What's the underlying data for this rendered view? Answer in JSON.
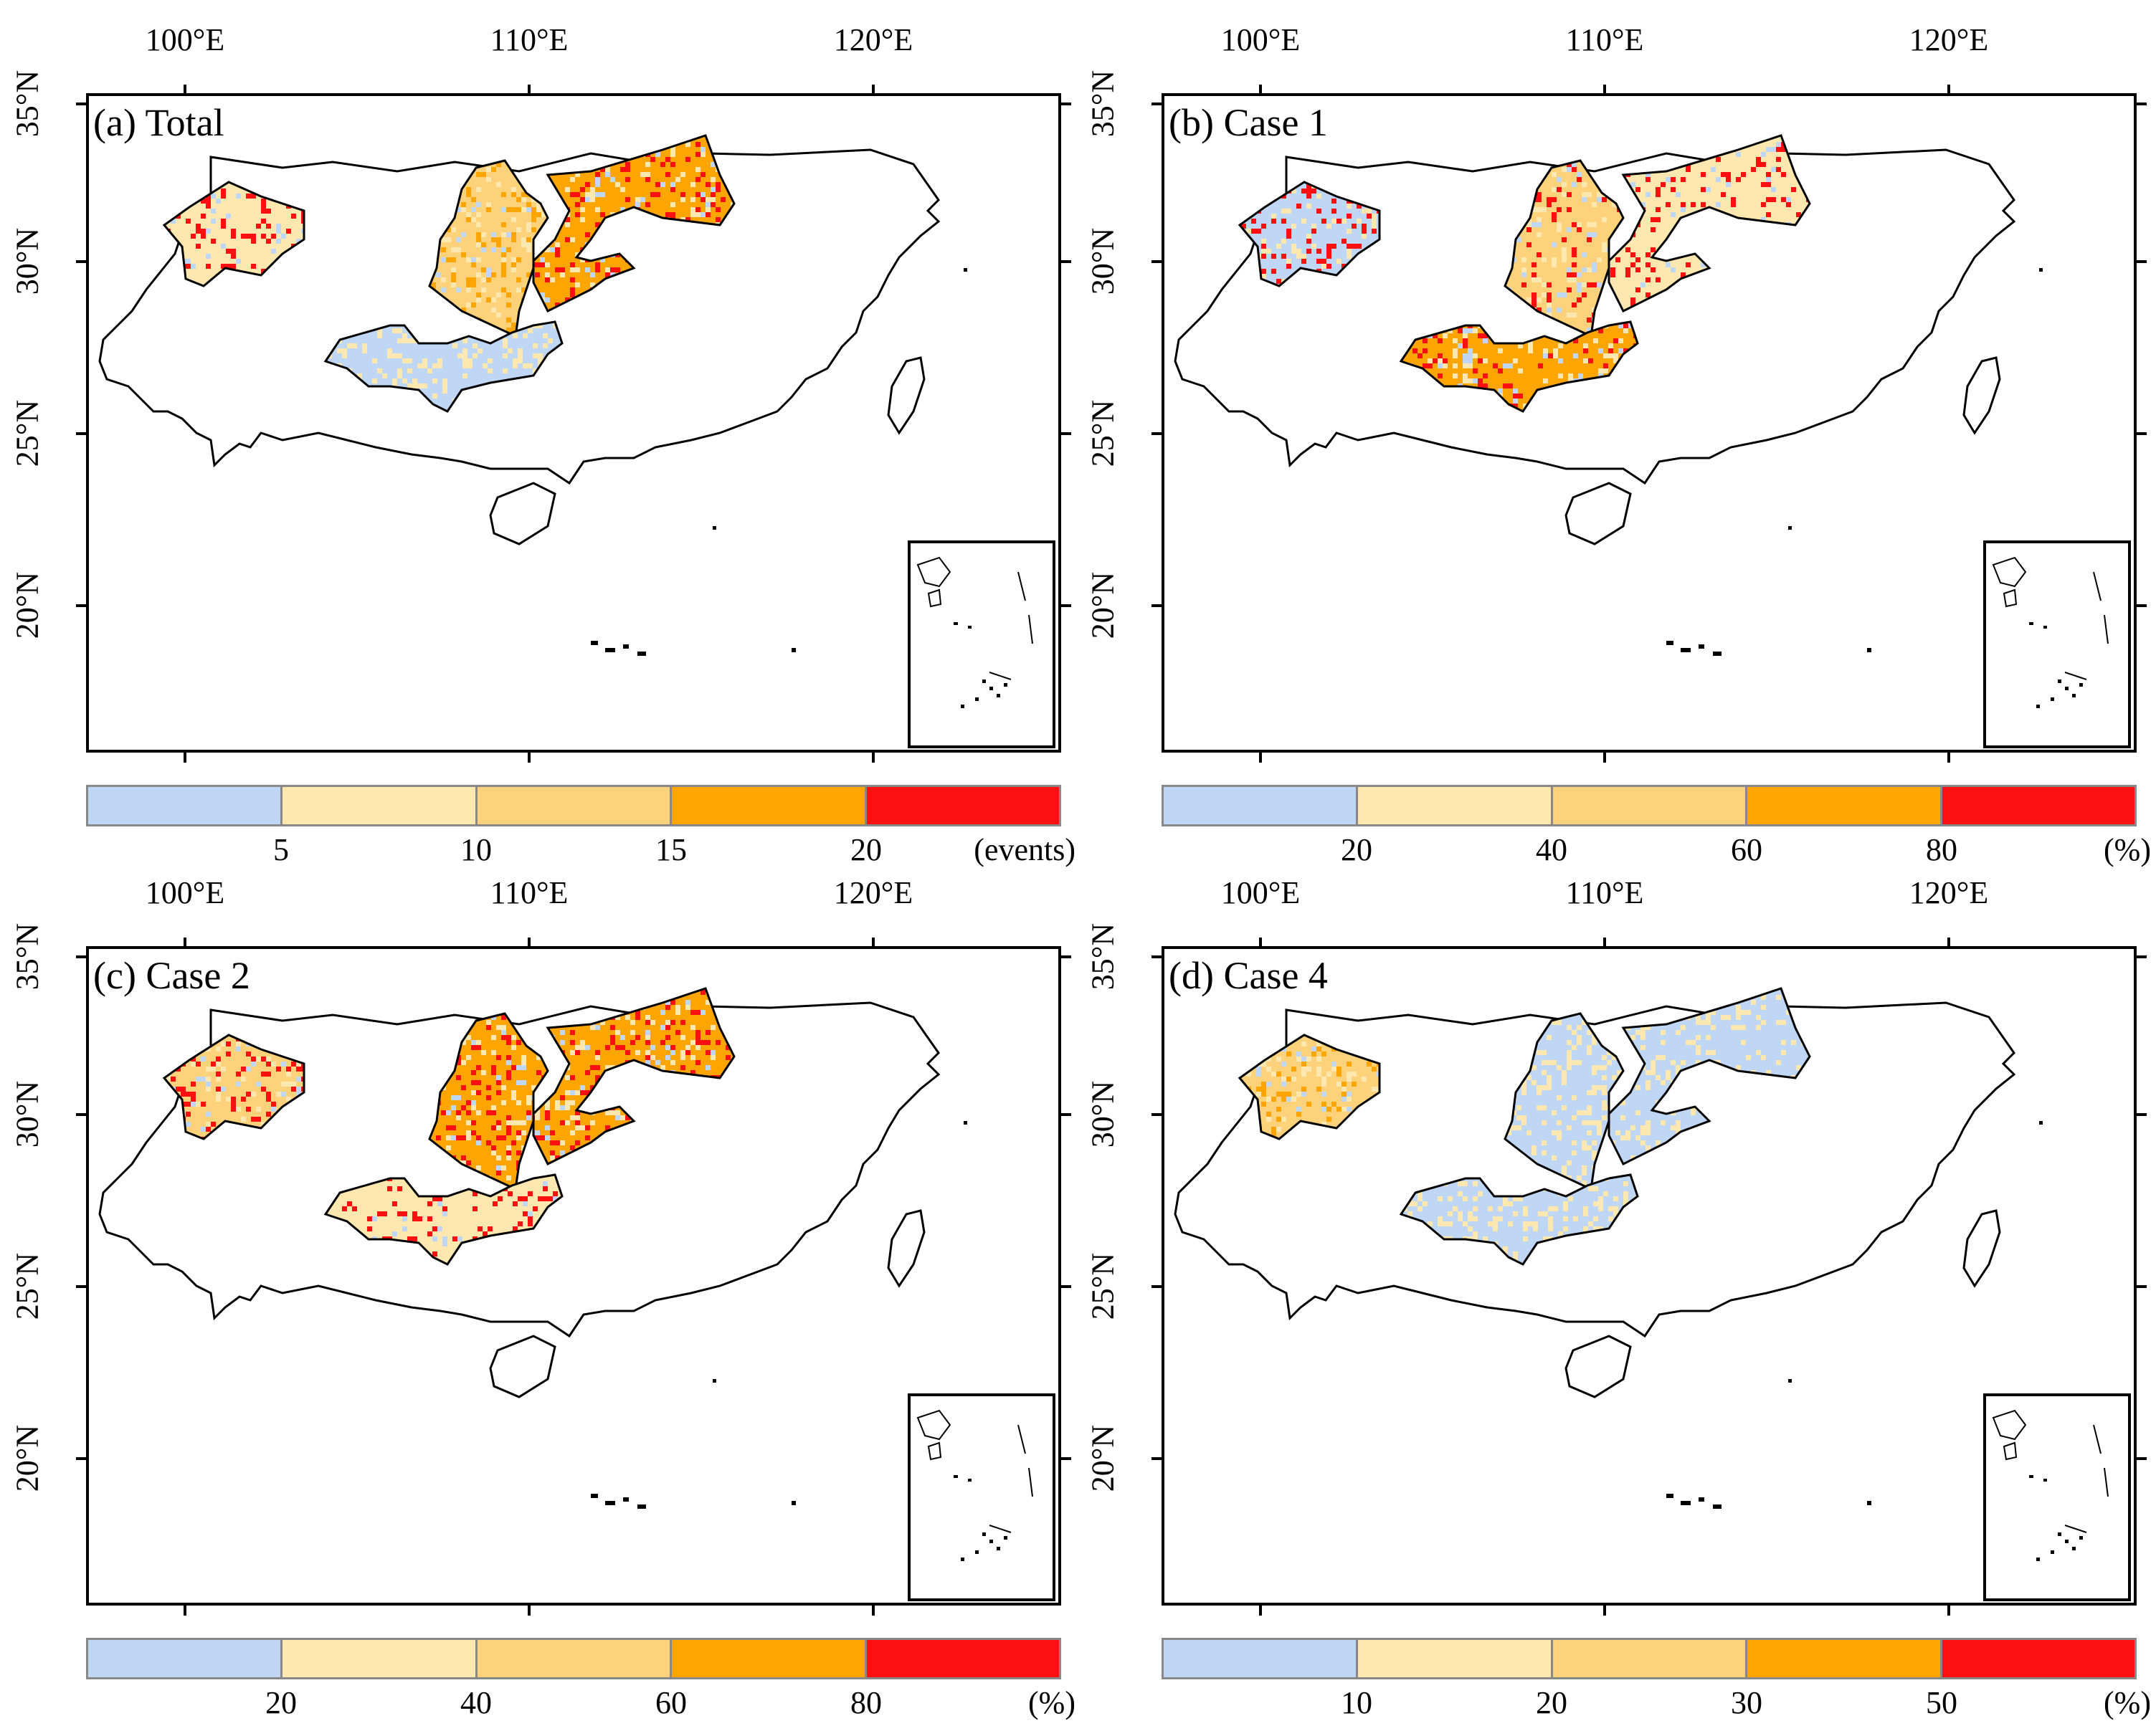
{
  "figure": {
    "x_ticks": [
      "100°E",
      "110°E",
      "120°E"
    ],
    "y_ticks": [
      "35°N",
      "30°N",
      "25°N",
      "20°N"
    ],
    "colors": {
      "c1": "#c0d6f5",
      "c2": "#fee8b0",
      "c3": "#fed27a",
      "c4": "#ffa500",
      "c5": "#ff1010",
      "outline": "#000000"
    }
  },
  "panels": [
    {
      "label": "(a) Total",
      "colorbar": {
        "ticks": [
          "5",
          "10",
          "15",
          "20"
        ],
        "unit": "(events)"
      },
      "dominant_colors": {
        "sichuan": "c2",
        "central": "c3",
        "east": "c4",
        "south": "c1"
      },
      "hotspot_colors": {
        "sichuan": "c5",
        "central": "c4",
        "east": "c5",
        "south": "c2"
      }
    },
    {
      "label": "(b) Case 1",
      "colorbar": {
        "ticks": [
          "20",
          "40",
          "60",
          "80"
        ],
        "unit": "(%)"
      },
      "dominant_colors": {
        "sichuan": "c1",
        "central": "c3",
        "east": "c2",
        "south": "c4"
      },
      "hotspot_colors": {
        "sichuan": "c5",
        "central": "c5",
        "east": "c5",
        "south": "c5"
      }
    },
    {
      "label": "(c) Case 2",
      "colorbar": {
        "ticks": [
          "20",
          "40",
          "60",
          "80"
        ],
        "unit": "(%)"
      },
      "dominant_colors": {
        "sichuan": "c3",
        "central": "c4",
        "east": "c4",
        "south": "c2"
      },
      "hotspot_colors": {
        "sichuan": "c5",
        "central": "c5",
        "east": "c5",
        "south": "c5"
      }
    },
    {
      "label": "(d) Case 4",
      "colorbar": {
        "ticks": [
          "10",
          "20",
          "30",
          "50"
        ],
        "unit": "(%)"
      },
      "dominant_colors": {
        "sichuan": "c3",
        "central": "c1",
        "east": "c1",
        "south": "c1"
      },
      "hotspot_colors": {
        "sichuan": "c4",
        "central": "c2",
        "east": "c2",
        "south": "c2"
      }
    }
  ]
}
